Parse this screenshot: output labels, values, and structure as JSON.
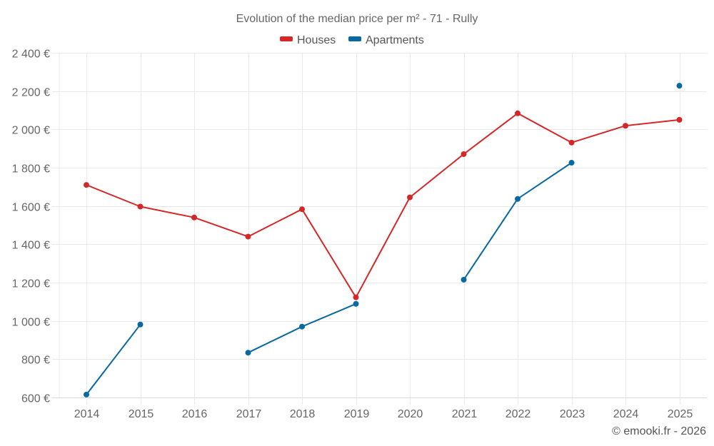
{
  "chart_data": {
    "type": "line",
    "title": "Evolution of the median price per m² - 71 - Rully",
    "xlabel": "",
    "ylabel": "",
    "categories": [
      "2014",
      "2015",
      "2016",
      "2017",
      "2018",
      "2019",
      "2020",
      "2021",
      "2022",
      "2023",
      "2024",
      "2025"
    ],
    "ylim": [
      600,
      2400
    ],
    "yticks": [
      600,
      800,
      1000,
      1200,
      1400,
      1600,
      1800,
      2000,
      2200,
      2400
    ],
    "ytick_labels": [
      "600 €",
      "800 €",
      "1 000 €",
      "1 200 €",
      "1 400 €",
      "1 600 €",
      "1 800 €",
      "2 000 €",
      "2 200 €",
      "2 400 €"
    ],
    "grid": true,
    "legend_position": "top-center",
    "series": [
      {
        "name": "Houses",
        "color": "#d62728",
        "values": [
          1710,
          1597,
          1540,
          1440,
          1583,
          1123,
          1645,
          1871,
          2084,
          1931,
          2019,
          2050
        ]
      },
      {
        "name": "Apartments",
        "color": "#0868a0",
        "values": [
          615,
          981,
          null,
          834,
          970,
          1089,
          null,
          1215,
          1637,
          1826,
          null,
          2228
        ]
      }
    ],
    "credit": "© emooki.fr - 2026"
  }
}
